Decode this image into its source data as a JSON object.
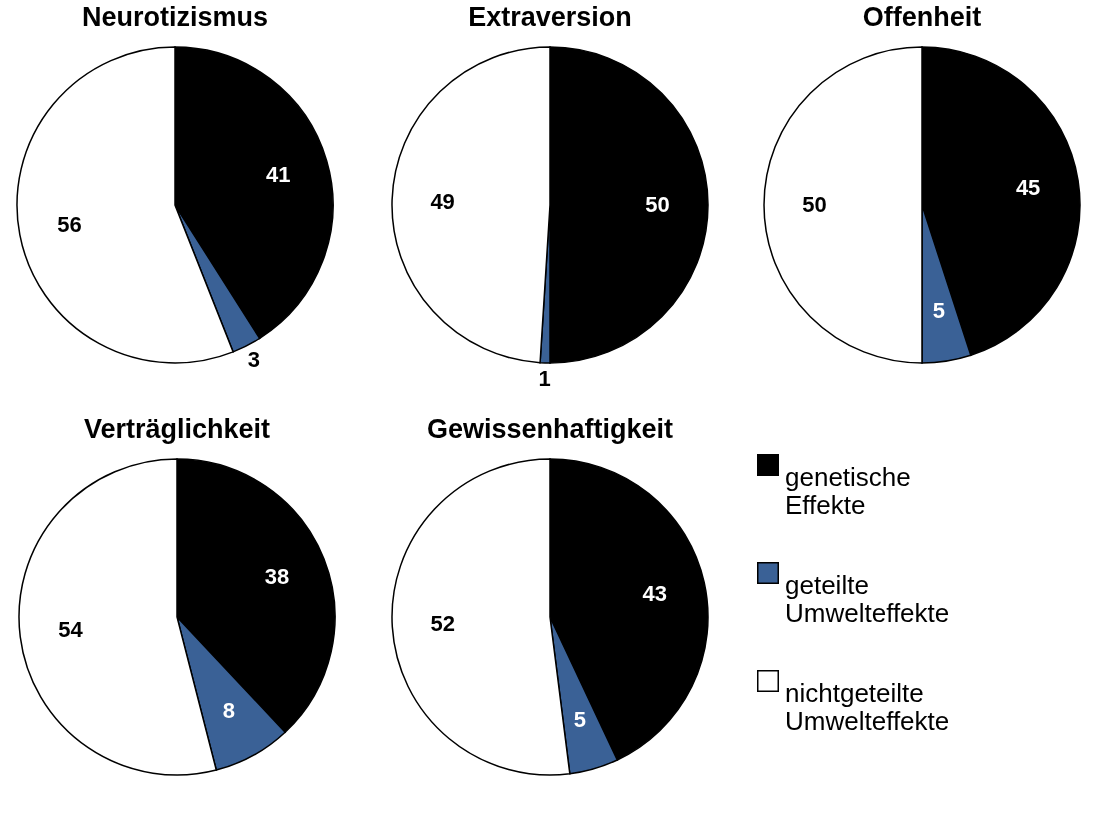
{
  "chart_data": [
    {
      "type": "pie",
      "title": "Neurotizismus",
      "categories": [
        null,
        null,
        null
      ],
      "values": [
        41,
        3,
        56
      ],
      "colors": [
        "#000000",
        "#3a6196",
        "#ffffff"
      ],
      "data_labels": true
    },
    {
      "type": "pie",
      "title": "Extraversion",
      "categories": [
        null,
        null,
        null
      ],
      "values": [
        50,
        1,
        49
      ],
      "colors": [
        "#000000",
        "#3a6196",
        "#ffffff"
      ],
      "data_labels": true
    },
    {
      "type": "pie",
      "title": "Offenheit",
      "categories": [
        null,
        null,
        null
      ],
      "values": [
        45,
        5,
        50
      ],
      "colors": [
        "#000000",
        "#3a6196",
        "#ffffff"
      ],
      "data_labels": true
    },
    {
      "type": "pie",
      "title": "Verträglichkeit",
      "categories": [
        null,
        null,
        null
      ],
      "values": [
        38,
        8,
        54
      ],
      "colors": [
        "#000000",
        "#3a6196",
        "#ffffff"
      ],
      "data_labels": true
    },
    {
      "type": "pie",
      "title": "Gewissenhaftigkeit",
      "categories": [
        "genetische Effekte",
        "geteilte Umwelteffekte",
        "nichtgeteilte Umwelteffekte"
      ],
      "values": [
        43,
        5,
        52
      ],
      "colors": [
        "#000000",
        "#3a6196",
        "#ffffff"
      ],
      "data_labels": true,
      "legend": "right"
    }
  ]
}
